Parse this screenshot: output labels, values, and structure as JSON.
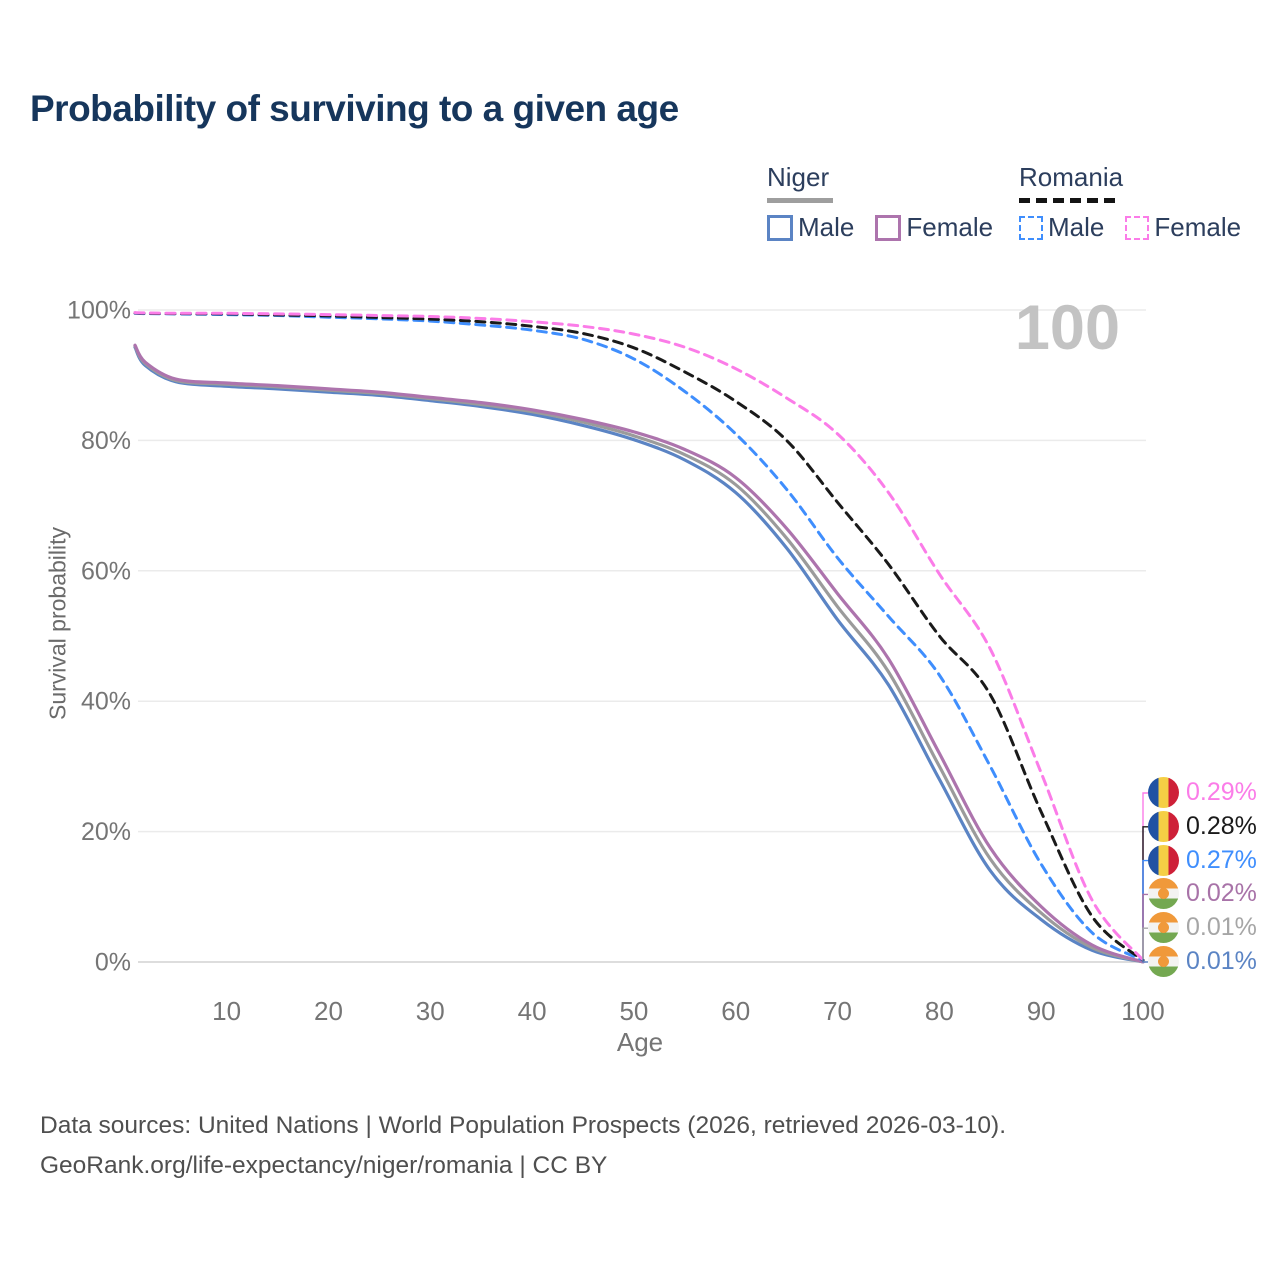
{
  "title": "Probability of surviving to a given age",
  "watermark": "100",
  "legend": {
    "groups": [
      {
        "name": "Niger",
        "line_style": "solid",
        "underline_color": "#9e9e9e",
        "items": [
          {
            "label": "Male",
            "color": "#5b84c4"
          },
          {
            "label": "Female",
            "color": "#ad74ad"
          }
        ]
      },
      {
        "name": "Romania",
        "line_style": "dashed",
        "underline_color": "#141414",
        "items": [
          {
            "label": "Male",
            "color": "#3f8efd"
          },
          {
            "label": "Female",
            "color": "#fb7ce8"
          }
        ]
      }
    ]
  },
  "chart_data": {
    "type": "line",
    "title": "Probability of surviving to a given age",
    "xlabel": "Age",
    "ylabel": "Survival probability",
    "xlim": [
      1,
      100
    ],
    "ylim": [
      0,
      100
    ],
    "grid": "horizontal-only",
    "legend_position": "top-right",
    "units": "percent",
    "x_ticks": [
      {
        "v": 10,
        "label": "10"
      },
      {
        "v": 20,
        "label": "20"
      },
      {
        "v": 30,
        "label": "30"
      },
      {
        "v": 40,
        "label": "40"
      },
      {
        "v": 50,
        "label": "50"
      },
      {
        "v": 60,
        "label": "60"
      },
      {
        "v": 70,
        "label": "70"
      },
      {
        "v": 80,
        "label": "80"
      },
      {
        "v": 90,
        "label": "90"
      },
      {
        "v": 100,
        "label": "100"
      }
    ],
    "y_ticks": [
      {
        "v": 0,
        "label": "0%"
      },
      {
        "v": 20,
        "label": "20%"
      },
      {
        "v": 40,
        "label": "40%"
      },
      {
        "v": 60,
        "label": "60%"
      },
      {
        "v": 80,
        "label": "80%"
      },
      {
        "v": 100,
        "label": "100%"
      }
    ],
    "x": [
      1,
      2,
      5,
      10,
      15,
      20,
      25,
      30,
      35,
      40,
      45,
      50,
      55,
      60,
      65,
      70,
      75,
      80,
      85,
      90,
      95,
      100
    ],
    "series": [
      {
        "name": "Niger Male",
        "country": "Niger",
        "sex": "Male",
        "color": "#5b84c4",
        "dash": false,
        "in_legend": true,
        "values": [
          94.3,
          91.5,
          89.0,
          88.3,
          87.9,
          87.4,
          86.9,
          86.1,
          85.2,
          84.0,
          82.3,
          80.1,
          77.0,
          72.0,
          63.5,
          52.5,
          42.5,
          28.0,
          14.0,
          6.5,
          1.8,
          0.01
        ]
      },
      {
        "name": "Niger Both sexes",
        "country": "Niger",
        "sex": "Both",
        "color": "#9b9b9b",
        "dash": false,
        "in_legend": false,
        "values": [
          94.5,
          91.8,
          89.2,
          88.6,
          88.2,
          87.7,
          87.2,
          86.4,
          85.5,
          84.4,
          82.8,
          80.7,
          77.8,
          73.2,
          65.0,
          54.5,
          44.5,
          30.0,
          15.8,
          7.5,
          2.2,
          0.01
        ]
      },
      {
        "name": "Niger Female",
        "country": "Niger",
        "sex": "Female",
        "color": "#ad74ad",
        "dash": false,
        "in_legend": true,
        "values": [
          94.6,
          92.0,
          89.4,
          88.8,
          88.4,
          87.9,
          87.4,
          86.6,
          85.8,
          84.7,
          83.2,
          81.3,
          78.6,
          74.3,
          66.5,
          56.5,
          46.5,
          32.0,
          17.5,
          8.5,
          2.6,
          0.02
        ]
      },
      {
        "name": "Romania Male",
        "country": "Romania",
        "sex": "Male",
        "color": "#3f8efd",
        "dash": true,
        "in_legend": true,
        "values": [
          99.5,
          99.45,
          99.4,
          99.3,
          99.15,
          98.9,
          98.65,
          98.3,
          97.7,
          96.9,
          95.5,
          92.5,
          87.5,
          81.0,
          72.5,
          62.0,
          53.0,
          44.0,
          30.0,
          15.0,
          4.5,
          0.27
        ]
      },
      {
        "name": "Romania Both sexes",
        "country": "Romania",
        "sex": "Both",
        "color": "#1a1a1a",
        "dash": true,
        "in_legend": false,
        "values": [
          99.55,
          99.5,
          99.45,
          99.4,
          99.25,
          99.1,
          98.85,
          98.6,
          98.2,
          97.5,
          96.4,
          94.2,
          90.5,
          86.0,
          80.0,
          70.5,
          61.0,
          50.0,
          41.0,
          23.0,
          7.0,
          0.28
        ]
      },
      {
        "name": "Romania Female",
        "country": "Romania",
        "sex": "Female",
        "color": "#fb7ce8",
        "dash": true,
        "in_legend": true,
        "values": [
          99.6,
          99.55,
          99.5,
          99.5,
          99.4,
          99.3,
          99.15,
          99.0,
          98.7,
          98.2,
          97.5,
          96.3,
          94.3,
          91.0,
          86.5,
          81.0,
          72.0,
          59.5,
          48.0,
          29.0,
          9.5,
          0.29
        ]
      }
    ],
    "end_labels": [
      {
        "label": "0.29%",
        "color": "#fb7ce8",
        "flag": "romania",
        "series": "Romania Female"
      },
      {
        "label": "0.28%",
        "color": "#1a1a1a",
        "flag": "romania",
        "series": "Romania Both sexes"
      },
      {
        "label": "0.27%",
        "color": "#3f8efd",
        "flag": "romania",
        "series": "Romania Male"
      },
      {
        "label": "0.02%",
        "color": "#a873a8",
        "flag": "niger",
        "series": "Niger Female"
      },
      {
        "label": "0.01%",
        "color": "#a6a6a6",
        "flag": "niger",
        "series": "Niger Both sexes"
      },
      {
        "label": "0.01%",
        "color": "#5b84c4",
        "flag": "niger",
        "series": "Niger Male"
      }
    ]
  },
  "footer": {
    "line1": "Data sources: United Nations | World Population Prospects (2026, retrieved 2026-03-10).",
    "line2": "GeoRank.org/life-expectancy/niger/romania | CC BY"
  }
}
